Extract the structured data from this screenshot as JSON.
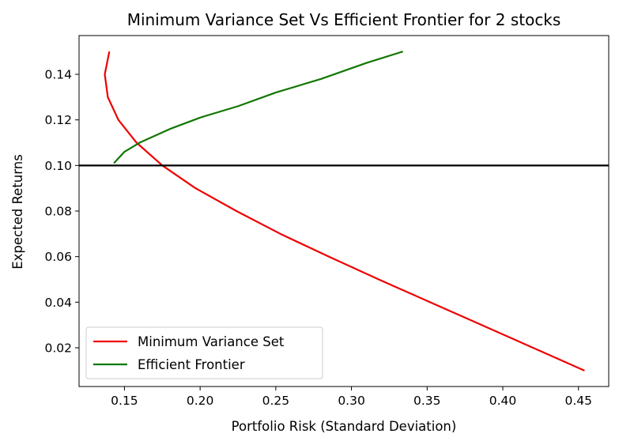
{
  "chart_data": {
    "type": "line",
    "title": "Minimum Variance Set Vs Efficient Frontier for 2 stocks",
    "xlabel": "Portfolio Risk (Standard Deviation)",
    "ylabel": "Expected Returns",
    "xlim": [
      0.12,
      0.47
    ],
    "ylim": [
      0.003,
      0.157
    ],
    "xticks": [
      0.15,
      0.2,
      0.25,
      0.3,
      0.35,
      0.4,
      0.45
    ],
    "xtick_labels": [
      "0.15",
      "0.20",
      "0.25",
      "0.30",
      "0.35",
      "0.40",
      "0.45"
    ],
    "yticks": [
      0.02,
      0.04,
      0.06,
      0.08,
      0.1,
      0.12,
      0.14
    ],
    "ytick_labels": [
      "0.02",
      "0.04",
      "0.06",
      "0.08",
      "0.10",
      "0.12",
      "0.14"
    ],
    "grid": false,
    "legend_position": "lower-left",
    "hline": {
      "y": 0.1,
      "color": "#000000"
    },
    "series": [
      {
        "name": "Minimum Variance Set",
        "color": "#ee0000",
        "points": [
          [
            0.454,
            0.01
          ],
          [
            0.42,
            0.02
          ],
          [
            0.386,
            0.03
          ],
          [
            0.352,
            0.04
          ],
          [
            0.318,
            0.05
          ],
          [
            0.285,
            0.06
          ],
          [
            0.253,
            0.07
          ],
          [
            0.224,
            0.08
          ],
          [
            0.197,
            0.09
          ],
          [
            0.175,
            0.1
          ],
          [
            0.158,
            0.11
          ],
          [
            0.146,
            0.12
          ],
          [
            0.139,
            0.13
          ],
          [
            0.137,
            0.14
          ],
          [
            0.14,
            0.15
          ]
        ]
      },
      {
        "name": "Efficient Frontier",
        "color": "#117700",
        "points": [
          [
            0.143,
            0.101
          ],
          [
            0.15,
            0.106
          ],
          [
            0.16,
            0.11
          ],
          [
            0.18,
            0.116
          ],
          [
            0.2,
            0.121
          ],
          [
            0.225,
            0.126
          ],
          [
            0.25,
            0.132
          ],
          [
            0.28,
            0.138
          ],
          [
            0.31,
            0.145
          ],
          [
            0.334,
            0.15
          ]
        ]
      }
    ]
  }
}
